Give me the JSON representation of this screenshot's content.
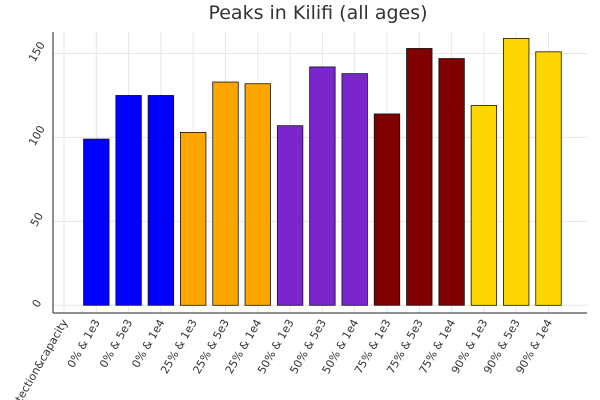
{
  "chart_data": {
    "type": "bar",
    "title": "Peaks in Kilifi (all ages)",
    "xlabel": "",
    "ylabel": "",
    "ylim": [
      -5,
      165
    ],
    "yticks": [
      0,
      50,
      100,
      150
    ],
    "grid": true,
    "legend": "none",
    "categories": [
      "detection&capacity",
      "0% & 1e3",
      "0% & 5e3",
      "0% & 1e4",
      "25% & 1e3",
      "25% & 5e3",
      "25% & 1e4",
      "50% & 1e3",
      "50% & 5e3",
      "50% & 1e4",
      "75% & 1e3",
      "75% & 5e3",
      "75% & 1e4",
      "90% & 1e3",
      "90% & 5e3",
      "90% & 1e4"
    ],
    "values": [
      null,
      99,
      125,
      125,
      103,
      133,
      132,
      107,
      142,
      138,
      114,
      153,
      147,
      119,
      159,
      151
    ],
    "colors": [
      null,
      "#0000ff",
      "#0000ff",
      "#0000ff",
      "#ffa500",
      "#ffa500",
      "#ffa500",
      "#7b26cc",
      "#7b26cc",
      "#7b26cc",
      "#7f0000",
      "#7f0000",
      "#7f0000",
      "#ffd700",
      "#ffd700",
      "#ffd700"
    ]
  }
}
